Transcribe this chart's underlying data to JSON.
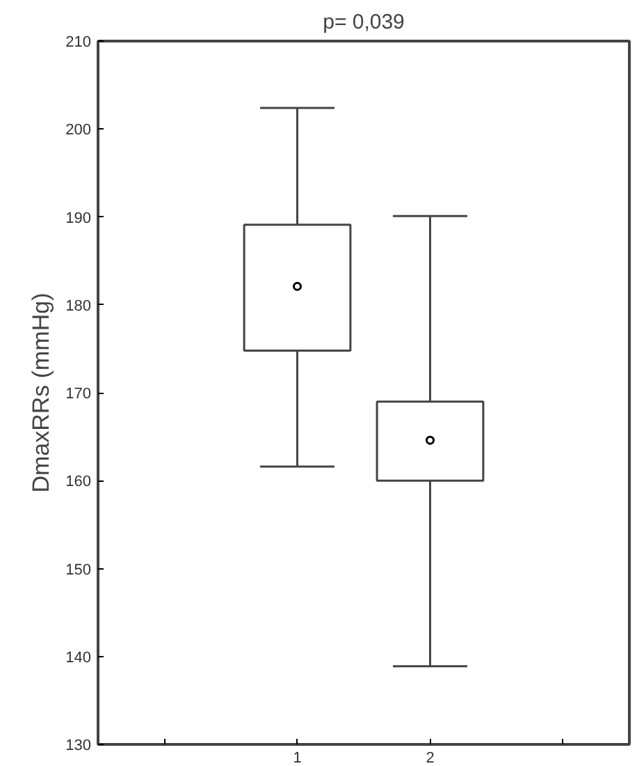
{
  "chart_data": {
    "type": "box",
    "title": "p= 0,039",
    "ylabel": "DmaxRRs (mmHg)",
    "categories": [
      "1",
      "2"
    ],
    "boxes": [
      {
        "low": 161.6,
        "q1": 174.8,
        "median": null,
        "q3": 189.1,
        "high": 202.4,
        "mean": 182.1
      },
      {
        "low": 138.9,
        "q1": 160.0,
        "median": null,
        "q3": 169.0,
        "high": 190.1,
        "mean": 164.6
      }
    ],
    "ylim": [
      130,
      210
    ],
    "yticks": [
      130,
      140,
      150,
      160,
      170,
      180,
      190,
      200,
      210
    ],
    "grid": false
  }
}
